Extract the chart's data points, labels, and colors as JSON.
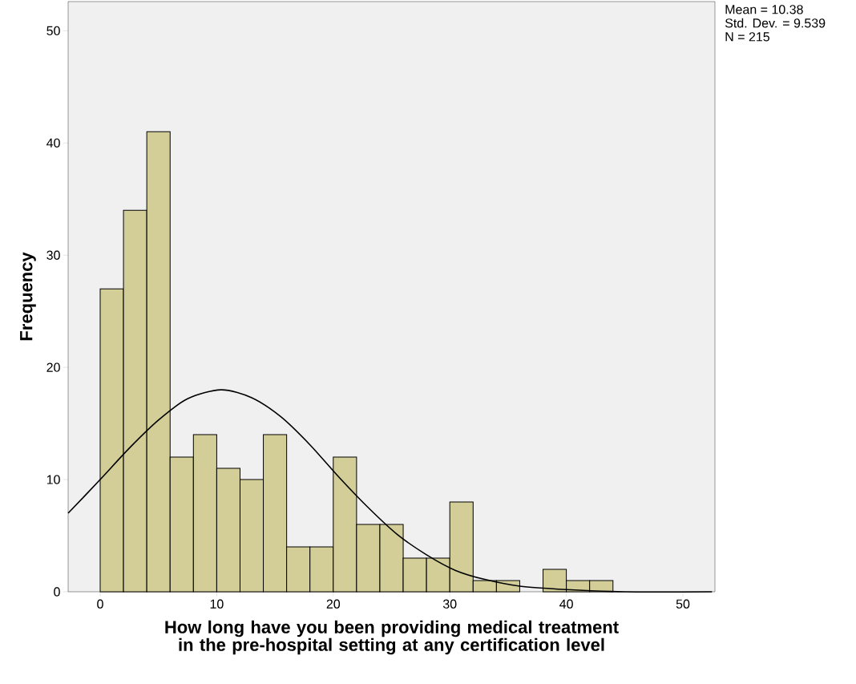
{
  "chart_data": {
    "type": "histogram",
    "xlabel": "How long have you been providing medical treatment in the pre-hospital setting at any certification level",
    "ylabel": "Frequency",
    "annotations": [
      "Mean = 10.38",
      "Std. Dev. = 9.539",
      "N = 215"
    ],
    "bins": [
      0,
      2,
      4,
      6,
      8,
      10,
      12,
      14,
      16,
      18,
      20,
      22,
      24,
      26,
      28,
      30,
      32,
      34,
      36,
      38,
      40,
      42,
      44
    ],
    "values": [
      27,
      34,
      41,
      12,
      14,
      11,
      10,
      14,
      4,
      4,
      12,
      6,
      6,
      3,
      3,
      8,
      1,
      1,
      0,
      2,
      1,
      1
    ],
    "color": "#d3ce97",
    "series": [
      {
        "type": "line",
        "color": "#000000",
        "x": [
          -2.75,
          0,
          2.5,
          5,
          7.5,
          10.38,
          13,
          15.5,
          18,
          20.5,
          23,
          25.5,
          28,
          30.5,
          33,
          36,
          40,
          45,
          52.5
        ],
        "values": [
          7.0,
          10.0,
          12.8,
          15.3,
          17.2,
          18.0,
          17.3,
          15.6,
          13.1,
          10.2,
          7.5,
          5.1,
          3.3,
          1.9,
          1.1,
          0.5,
          0.2,
          0.0,
          0.0
        ]
      }
    ],
    "xlim": [
      -2.75,
      52.75
    ],
    "ylim": [
      0,
      52.6
    ],
    "xticks": [
      0,
      10,
      20,
      30,
      40,
      50
    ],
    "yticks": [
      0,
      10,
      20,
      30,
      40,
      50
    ],
    "grid": false
  }
}
